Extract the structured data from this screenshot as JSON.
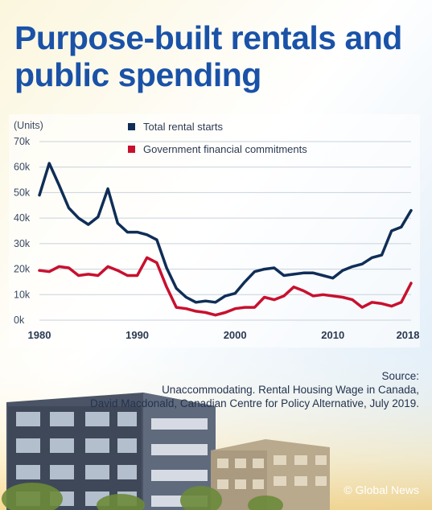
{
  "title": "Purpose-built rentals and public spending",
  "source": {
    "label": "Source:",
    "line1": "Unaccommodating. Rental Housing Wage in Canada,",
    "line2": "David Macdonald, Canadian Centre for Policy Alternative, July 2019."
  },
  "credit": "© Global News",
  "colors": {
    "title": "#1a52a8",
    "total_rental_starts": "#0f2e57",
    "government_financial_commitments": "#c8102e"
  },
  "chart_data": {
    "type": "line",
    "title": "Purpose-built rentals and public spending",
    "ylabel": "(Units)",
    "xlabel": "",
    "ylim": [
      0,
      70000
    ],
    "xlim": [
      1980,
      2018
    ],
    "grid": true,
    "legend_position": "top",
    "y_ticks": [
      {
        "value": 0,
        "label": "0k"
      },
      {
        "value": 10000,
        "label": "10k"
      },
      {
        "value": 20000,
        "label": "20k"
      },
      {
        "value": 30000,
        "label": "30k"
      },
      {
        "value": 40000,
        "label": "40k"
      },
      {
        "value": 50000,
        "label": "50k"
      },
      {
        "value": 60000,
        "label": "60k"
      },
      {
        "value": 70000,
        "label": "70k"
      }
    ],
    "x_ticks": [
      {
        "value": 1980,
        "label": "1980"
      },
      {
        "value": 1990,
        "label": "1990"
      },
      {
        "value": 2000,
        "label": "2000"
      },
      {
        "value": 2010,
        "label": "2010"
      },
      {
        "value": 2018,
        "label": "2018p"
      }
    ],
    "x": [
      1980,
      1981,
      1982,
      1983,
      1984,
      1985,
      1986,
      1987,
      1988,
      1989,
      1990,
      1991,
      1992,
      1993,
      1994,
      1995,
      1996,
      1997,
      1998,
      1999,
      2000,
      2001,
      2002,
      2003,
      2004,
      2005,
      2006,
      2007,
      2008,
      2009,
      2010,
      2011,
      2012,
      2013,
      2014,
      2015,
      2016,
      2017,
      2018
    ],
    "series": [
      {
        "name": "Total rental starts",
        "color": "#0f2e57",
        "values": [
          49000,
          61500,
          53000,
          44000,
          40000,
          37500,
          40500,
          51500,
          38000,
          34500,
          34500,
          33500,
          31500,
          20500,
          12500,
          9000,
          7000,
          7500,
          7000,
          9500,
          10500,
          15000,
          19000,
          20000,
          20500,
          17500,
          18000,
          18500,
          18500,
          17500,
          16500,
          19500,
          21000,
          22000,
          24500,
          25500,
          35000,
          36500,
          43000
        ]
      },
      {
        "name": "Government financial commitments",
        "color": "#c8102e",
        "values": [
          19500,
          19000,
          21000,
          20500,
          17500,
          18000,
          17500,
          21000,
          19500,
          17500,
          17500,
          24500,
          22500,
          13000,
          5000,
          4500,
          3500,
          3000,
          2000,
          3000,
          4500,
          5000,
          5000,
          9000,
          8000,
          9500,
          13000,
          11500,
          9500,
          10000,
          9500,
          9000,
          8000,
          5000,
          7000,
          6500,
          5500,
          7000,
          14500
        ]
      }
    ]
  }
}
